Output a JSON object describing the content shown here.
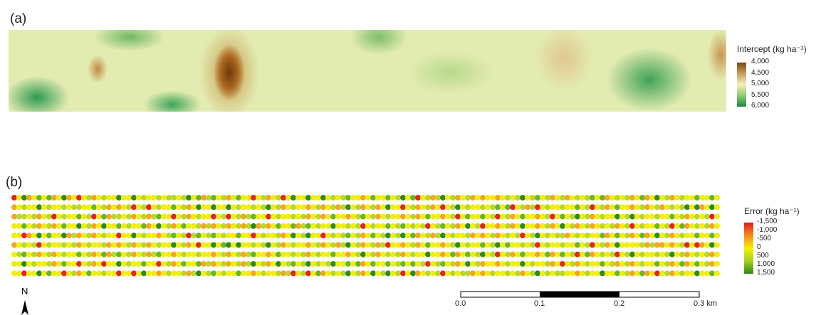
{
  "panel_a": {
    "label": "(a)",
    "legend": {
      "title": "Intercept (kg ha⁻¹)",
      "labels": [
        "4,000",
        "4,500",
        "5,000",
        "5,500",
        "6,000"
      ]
    }
  },
  "panel_b": {
    "label": "(b)",
    "legend": {
      "title": "Error (kg ha⁻¹)",
      "labels": [
        "-1,500",
        "-1,000",
        "-500",
        "0",
        "500",
        "1,000",
        "1,500"
      ]
    }
  },
  "scale_bar": {
    "labels": [
      "0.0",
      "0.1",
      "0.2",
      "0.3 km"
    ]
  },
  "north": "N"
}
